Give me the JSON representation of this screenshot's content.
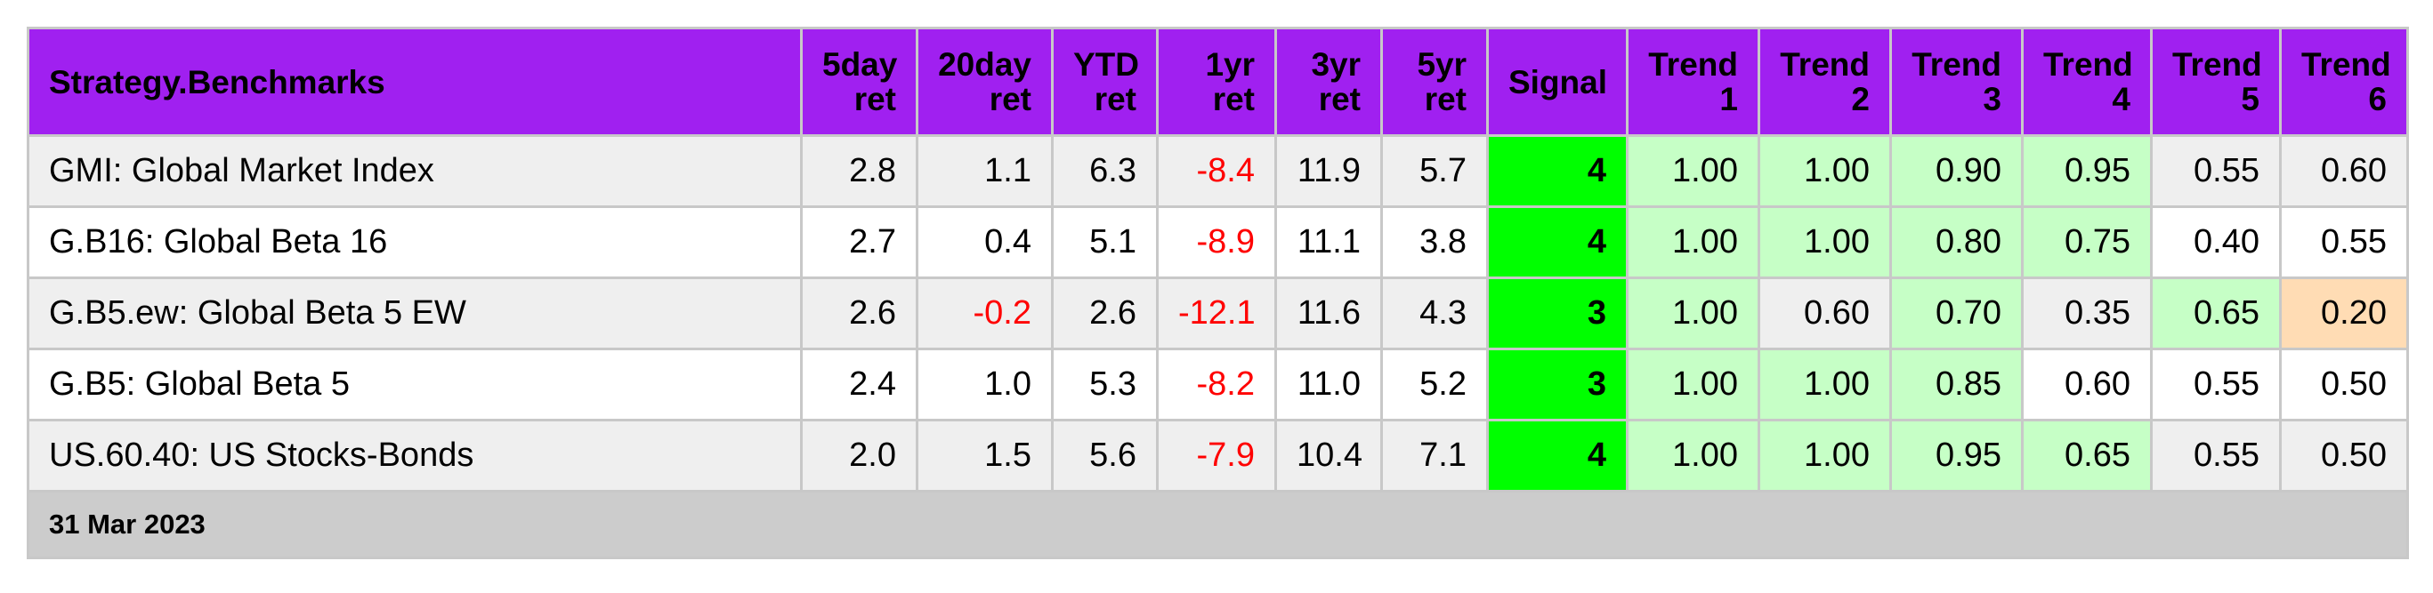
{
  "chart_data": {
    "type": "table",
    "title": "Strategy.Benchmarks",
    "columns": [
      {
        "key": "d5",
        "line1": "5day",
        "line2": "ret"
      },
      {
        "key": "d20",
        "line1": "20day",
        "line2": "ret"
      },
      {
        "key": "ytd",
        "line1": "YTD",
        "line2": "ret"
      },
      {
        "key": "y1",
        "line1": "1yr",
        "line2": "ret"
      },
      {
        "key": "y3",
        "line1": "3yr",
        "line2": "ret"
      },
      {
        "key": "y5",
        "line1": "5yr",
        "line2": "ret"
      },
      {
        "key": "signal",
        "line1": "Signal",
        "line2": ""
      },
      {
        "key": "t1",
        "line1": "Trend",
        "line2": "1"
      },
      {
        "key": "t2",
        "line1": "Trend",
        "line2": "2"
      },
      {
        "key": "t3",
        "line1": "Trend",
        "line2": "3"
      },
      {
        "key": "t4",
        "line1": "Trend",
        "line2": "4"
      },
      {
        "key": "t5",
        "line1": "Trend",
        "line2": "5"
      },
      {
        "key": "t6",
        "line1": "Trend",
        "line2": "6"
      }
    ],
    "rows": [
      {
        "name": "GMI: Global Market Index",
        "values": [
          "2.8",
          "1.1",
          "6.3",
          "-8.4",
          "11.9",
          "5.7",
          "4",
          "1.00",
          "1.00",
          "0.90",
          "0.95",
          "0.55",
          "0.60"
        ]
      },
      {
        "name": "G.B16: Global Beta 16",
        "values": [
          "2.7",
          "0.4",
          "5.1",
          "-8.9",
          "11.1",
          "3.8",
          "4",
          "1.00",
          "1.00",
          "0.80",
          "0.75",
          "0.40",
          "0.55"
        ]
      },
      {
        "name": "G.B5.ew: Global Beta 5 EW",
        "values": [
          "2.6",
          "-0.2",
          "2.6",
          "-12.1",
          "11.6",
          "4.3",
          "3",
          "1.00",
          "0.60",
          "0.70",
          "0.35",
          "0.65",
          "0.20"
        ]
      },
      {
        "name": "G.B5: Global Beta 5",
        "values": [
          "2.4",
          "1.0",
          "5.3",
          "-8.2",
          "11.0",
          "5.2",
          "3",
          "1.00",
          "1.00",
          "0.85",
          "0.60",
          "0.55",
          "0.50"
        ]
      },
      {
        "name": "US.60.40: US Stocks-Bonds",
        "values": [
          "2.0",
          "1.5",
          "5.6",
          "-7.9",
          "10.4",
          "7.1",
          "4",
          "1.00",
          "1.00",
          "0.95",
          "0.65",
          "0.55",
          "0.50"
        ]
      }
    ],
    "footer": "31 Mar 2023",
    "colors": {
      "header_bg": "#a020f0",
      "signal_bg": "#00ff00",
      "trend_high_bg": "#c6ffc6",
      "trend_low_bg": "#ffdcb4",
      "negative_text": "#ff0000",
      "row_alt_bg": "#efefef",
      "footer_bg": "#cccccc"
    }
  }
}
